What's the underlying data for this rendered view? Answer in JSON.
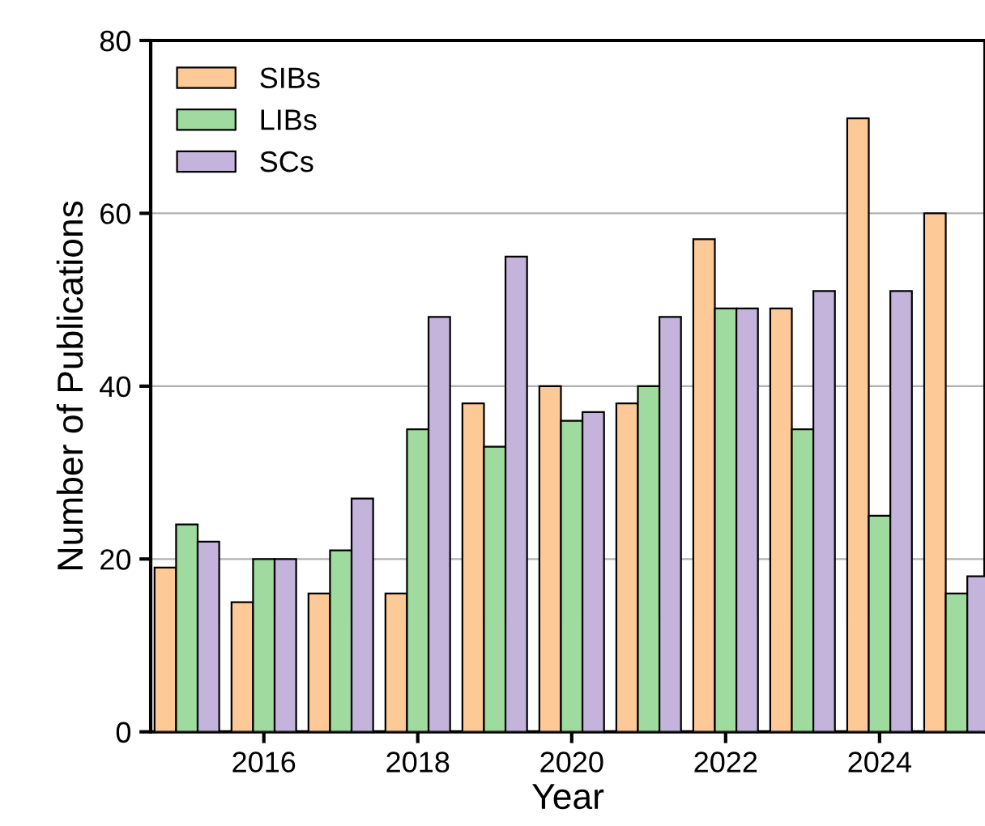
{
  "chart_data": {
    "type": "bar",
    "xlabel": "Year",
    "ylabel": "Number of Publications",
    "x": [
      2015,
      2016,
      2017,
      2018,
      2019,
      2020,
      2021,
      2022,
      2023,
      2024,
      2025
    ],
    "series": [
      {
        "name": "SIBs",
        "color": "#fdc996",
        "values": [
          19,
          15,
          16,
          16,
          38,
          40,
          38,
          57,
          49,
          71,
          60
        ]
      },
      {
        "name": "LIBs",
        "color": "#9fdb9f",
        "values": [
          24,
          20,
          21,
          35,
          33,
          36,
          40,
          49,
          35,
          25,
          16
        ]
      },
      {
        "name": "SCs",
        "color": "#c4b4dc",
        "values": [
          22,
          20,
          27,
          48,
          55,
          37,
          48,
          49,
          51,
          51,
          18
        ]
      }
    ],
    "xlim": [
      2014.53,
      2025.37
    ],
    "xticks": [
      2016,
      2018,
      2020,
      2022,
      2024
    ],
    "ylim": [
      0,
      80
    ],
    "yticks": [
      0,
      20,
      40,
      60,
      80
    ],
    "grid": "y",
    "legend": "top left"
  }
}
